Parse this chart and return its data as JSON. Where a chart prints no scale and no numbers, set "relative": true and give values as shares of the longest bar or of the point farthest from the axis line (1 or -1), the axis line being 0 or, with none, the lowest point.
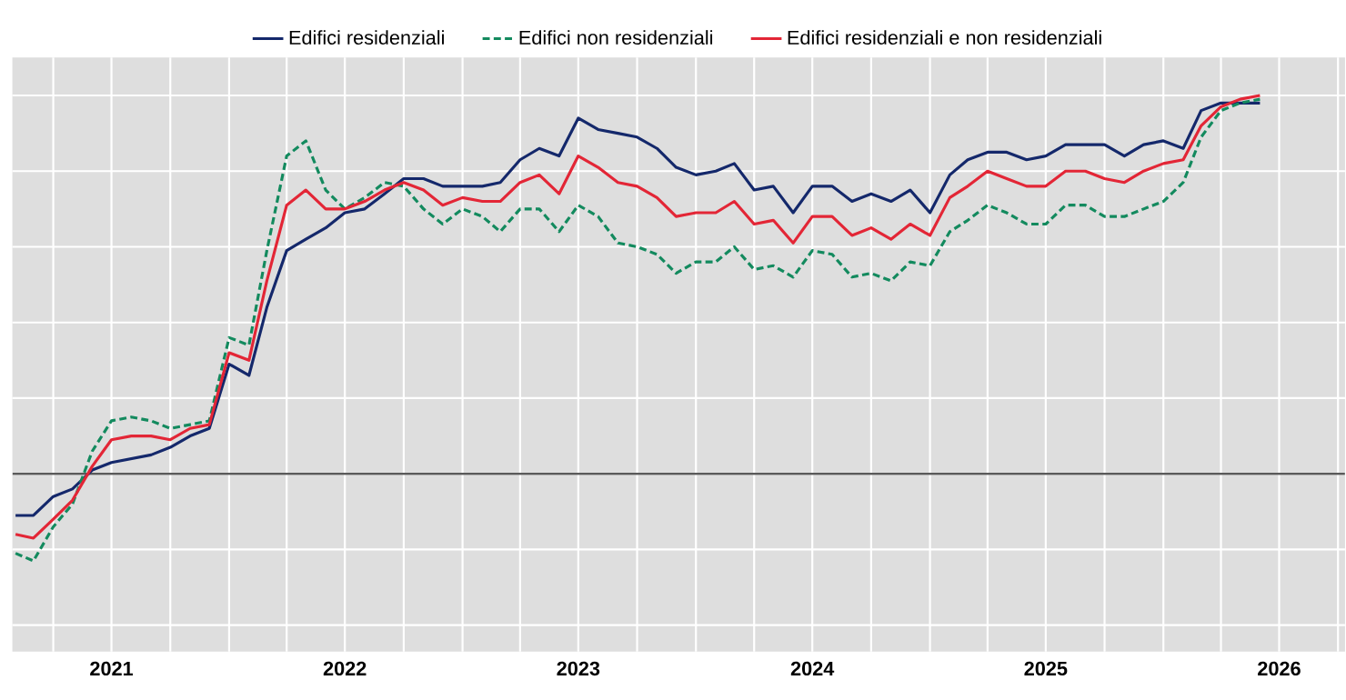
{
  "chart_data": {
    "type": "line",
    "relative": true,
    "grid": true,
    "legend": "top",
    "marker": "none",
    "x": [
      "2021-02",
      "2021-03",
      "2021-04",
      "2021-05",
      "2021-06",
      "2021-07",
      "2021-08",
      "2021-09",
      "2021-10",
      "2021-11",
      "2021-12",
      "2022-01",
      "2022-02",
      "2022-03",
      "2022-04",
      "2022-05",
      "2022-06",
      "2022-07",
      "2022-08",
      "2022-09",
      "2022-10",
      "2022-11",
      "2022-12",
      "2023-01",
      "2023-02",
      "2023-03",
      "2023-04",
      "2023-05",
      "2023-06",
      "2023-07",
      "2023-08",
      "2023-09",
      "2023-10",
      "2023-11",
      "2023-12",
      "2024-01",
      "2024-02",
      "2024-03",
      "2024-04",
      "2024-05",
      "2024-06",
      "2024-07",
      "2024-08",
      "2024-09",
      "2024-10",
      "2024-11",
      "2024-12",
      "2025-01",
      "2025-02",
      "2025-03",
      "2025-04",
      "2025-05",
      "2025-06",
      "2025-07",
      "2025-08",
      "2025-09",
      "2025-10",
      "2025-11",
      "2025-12",
      "2026-01",
      "2026-02",
      "2026-03",
      "2026-04",
      "2026-05",
      "2026-06"
    ],
    "xlim": [
      "2021-01-27",
      "2026-10-12"
    ],
    "xticks": [
      {
        "value": "2021-04-01",
        "label": null
      },
      {
        "value": "2021-07-01",
        "label": "2021"
      },
      {
        "value": "2021-10-01",
        "label": null
      },
      {
        "value": "2022-01-01",
        "label": null
      },
      {
        "value": "2022-04-01",
        "label": null
      },
      {
        "value": "2022-07-01",
        "label": "2022"
      },
      {
        "value": "2022-10-01",
        "label": null
      },
      {
        "value": "2023-01-01",
        "label": null
      },
      {
        "value": "2023-04-01",
        "label": null
      },
      {
        "value": "2023-07-01",
        "label": "2023"
      },
      {
        "value": "2023-10-01",
        "label": null
      },
      {
        "value": "2024-01-01",
        "label": null
      },
      {
        "value": "2024-04-01",
        "label": null
      },
      {
        "value": "2024-07-01",
        "label": "2024"
      },
      {
        "value": "2024-10-01",
        "label": null
      },
      {
        "value": "2025-01-01",
        "label": null
      },
      {
        "value": "2025-04-01",
        "label": null
      },
      {
        "value": "2025-07-01",
        "label": "2025"
      },
      {
        "value": "2025-10-01",
        "label": null
      },
      {
        "value": "2026-01-01",
        "label": null
      },
      {
        "value": "2026-04-01",
        "label": null
      },
      {
        "value": "2026-07-01",
        "label": "2026"
      },
      {
        "value": "2026-10-01",
        "label": null
      }
    ],
    "series": [
      {
        "name": "Edifici residenziali",
        "color": "#14286b",
        "line_style": "solid",
        "values": [
          -0.11,
          -0.11,
          -0.06,
          -0.04,
          0.01,
          0.03,
          0.04,
          0.05,
          0.07,
          0.1,
          0.12,
          0.29,
          0.26,
          0.44,
          0.59,
          0.62,
          0.65,
          0.69,
          0.7,
          0.74,
          0.78,
          0.78,
          0.76,
          0.76,
          0.76,
          0.77,
          0.83,
          0.86,
          0.84,
          0.94,
          0.91,
          0.9,
          0.89,
          0.86,
          0.81,
          0.79,
          0.8,
          0.82,
          0.75,
          0.76,
          0.69,
          0.76,
          0.76,
          0.72,
          0.74,
          0.72,
          0.75,
          0.69,
          0.79,
          0.83,
          0.85,
          0.85,
          0.83,
          0.84,
          0.87,
          0.87,
          0.87,
          0.84,
          0.87,
          0.88,
          0.86,
          0.96,
          0.98,
          0.98,
          0.98
        ]
      },
      {
        "name": "Edifici non residenziali",
        "color": "#138a5e",
        "line_style": "dashed",
        "values": [
          -0.21,
          -0.23,
          -0.14,
          -0.08,
          0.06,
          0.14,
          0.15,
          0.14,
          0.12,
          0.13,
          0.14,
          0.36,
          0.34,
          0.59,
          0.84,
          0.88,
          0.75,
          0.7,
          0.73,
          0.77,
          0.76,
          0.7,
          0.66,
          0.7,
          0.68,
          0.64,
          0.7,
          0.7,
          0.64,
          0.71,
          0.68,
          0.61,
          0.6,
          0.58,
          0.53,
          0.56,
          0.56,
          0.6,
          0.54,
          0.55,
          0.52,
          0.59,
          0.58,
          0.52,
          0.53,
          0.51,
          0.56,
          0.55,
          0.64,
          0.67,
          0.71,
          0.69,
          0.66,
          0.66,
          0.71,
          0.71,
          0.68,
          0.68,
          0.7,
          0.72,
          0.77,
          0.89,
          0.96,
          0.98,
          0.99
        ]
      },
      {
        "name": "Edifici residenziali e non residenziali",
        "color": "#e32636",
        "line_style": "solid",
        "values": [
          -0.16,
          -0.17,
          -0.12,
          -0.07,
          0.02,
          0.09,
          0.1,
          0.1,
          0.09,
          0.12,
          0.13,
          0.32,
          0.3,
          0.51,
          0.71,
          0.75,
          0.7,
          0.7,
          0.72,
          0.75,
          0.77,
          0.75,
          0.71,
          0.73,
          0.72,
          0.72,
          0.77,
          0.79,
          0.74,
          0.84,
          0.81,
          0.77,
          0.76,
          0.73,
          0.68,
          0.69,
          0.69,
          0.72,
          0.66,
          0.67,
          0.61,
          0.68,
          0.68,
          0.63,
          0.65,
          0.62,
          0.66,
          0.63,
          0.73,
          0.76,
          0.8,
          0.78,
          0.76,
          0.76,
          0.8,
          0.8,
          0.78,
          0.77,
          0.8,
          0.82,
          0.83,
          0.92,
          0.97,
          0.99,
          1
        ]
      }
    ]
  }
}
